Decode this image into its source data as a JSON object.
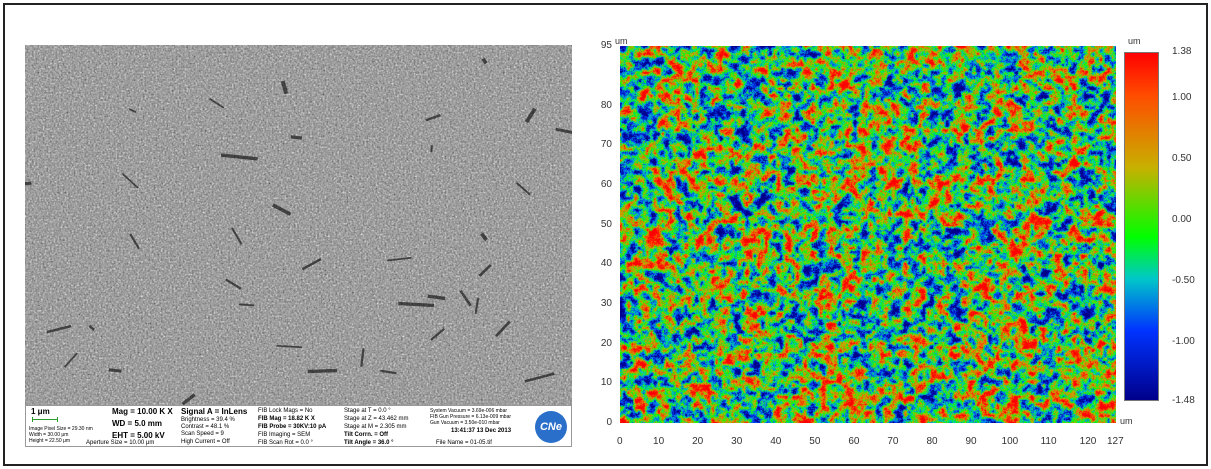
{
  "sem": {
    "scale": "1 μm",
    "mag": "Mag = 10.00 K X",
    "wd": "WD = 5.0 mm",
    "eht": "EHT = 5.00 kV",
    "signal": "Signal A = InLens",
    "brightness": "Brightness = 39.4 %",
    "contrast": "Contrast = 48.1 %",
    "scan_speed": "Scan Speed = 9",
    "high_current": "High Current = Off",
    "aperture": "Aperture Size = 10.00 μm",
    "pixel_size": "Image Pixel Size = 29.30 nm",
    "width": "Width = 30.00 μm",
    "height": "Height = 22.50 μm",
    "fib_lock": "FIB Lock Mags = No",
    "fib_mag": "FIB Mag = 18.82 K X",
    "fib_probe": "FIB Probe = 30KV:10 pA",
    "fib_imaging": "FIB Imaging = SEM",
    "fib_scan_rot": "FIB Scan Rot = 0.0 °",
    "stage_t": "Stage at T = 0.0 °",
    "stage_z": "Stage at Z = 43.462 mm",
    "stage_m": "Stage at M = 2.305 mm",
    "tilt_corrn": "Tilt Corrn. = Off",
    "tilt_angle": "Tilt Angle = 36.0 °",
    "system_vacuum": "System Vacuum = 3.69e-006 mbar",
    "fib_gun_pressure": "FIB Gun Pressure = 6.13e-009 mbar",
    "gun_vacuum": "Gun Vacuum = 3.50e-010 mbar",
    "datetime": "13:41:37 13 Dec 2013",
    "file_name": "File Name = 01-05.tif",
    "logo": "CNe"
  },
  "map": {
    "unit_x": "um",
    "unit_y": "um",
    "unit_cbar": "um",
    "y_ticks": [
      "95",
      "80",
      "70",
      "60",
      "50",
      "40",
      "30",
      "20",
      "10",
      "0"
    ],
    "x_ticks": [
      "0",
      "10",
      "20",
      "30",
      "40",
      "50",
      "60",
      "70",
      "80",
      "90",
      "100",
      "110",
      "120",
      "127"
    ],
    "cbar_ticks": [
      "1.38",
      "1.00",
      "0.50",
      "0.00",
      "-0.50",
      "-1.00",
      "-1.48"
    ]
  }
}
